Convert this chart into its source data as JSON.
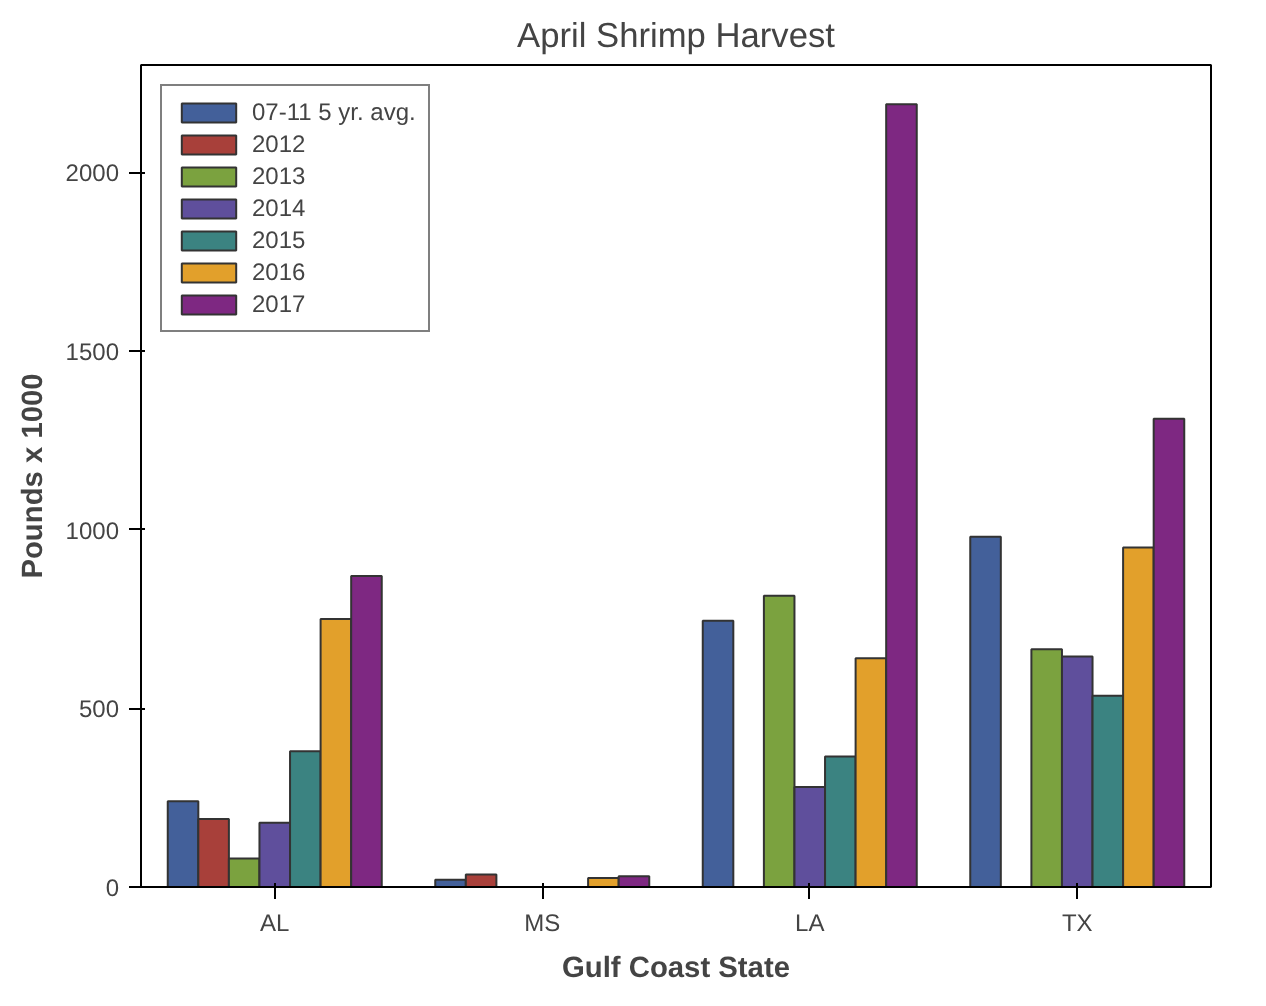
{
  "chart_data": {
    "type": "bar",
    "title": "April Shrimp Harvest",
    "xlabel": "Gulf Coast State",
    "ylabel": "Pounds x 1000",
    "categories": [
      "AL",
      "MS",
      "LA",
      "TX"
    ],
    "series": [
      {
        "name": "07-11 5 yr. avg.",
        "color": "#43609a",
        "values": [
          240,
          20,
          745,
          980
        ]
      },
      {
        "name": "2012",
        "color": "#a8403a",
        "values": [
          190,
          35,
          null,
          null
        ]
      },
      {
        "name": "2013",
        "color": "#7ba23f",
        "values": [
          80,
          null,
          815,
          665
        ]
      },
      {
        "name": "2014",
        "color": "#5f4f9c",
        "values": [
          180,
          null,
          280,
          645
        ]
      },
      {
        "name": "2015",
        "color": "#3b8381",
        "values": [
          380,
          null,
          365,
          535
        ]
      },
      {
        "name": "2016",
        "color": "#e2a02b",
        "values": [
          750,
          25,
          640,
          950
        ]
      },
      {
        "name": "2017",
        "color": "#7e2882",
        "values": [
          870,
          30,
          2190,
          1310
        ]
      }
    ],
    "ylim": [
      0,
      2300
    ],
    "yticks": [
      0,
      500,
      1000,
      1500,
      2000
    ],
    "grid": false,
    "legend": "top left"
  }
}
